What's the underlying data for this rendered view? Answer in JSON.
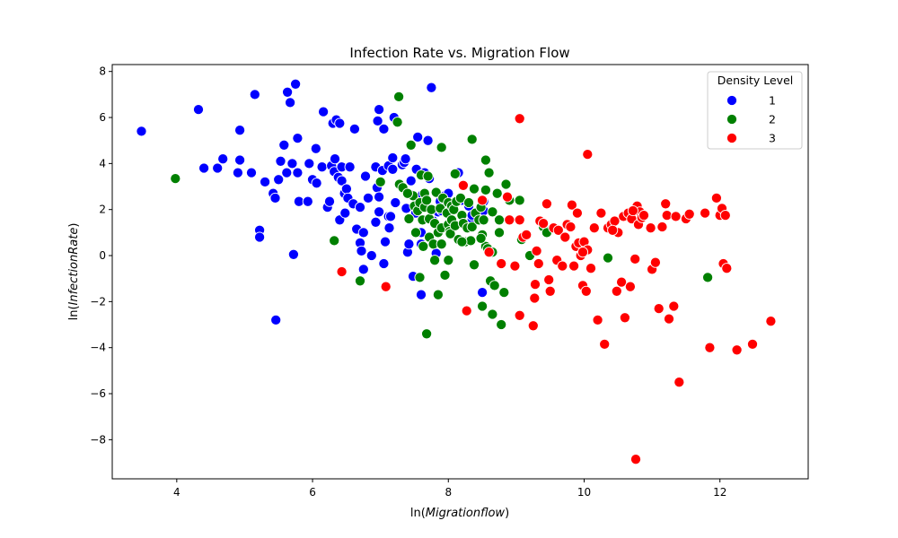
{
  "chart_data": {
    "type": "scatter",
    "title": "Infection Rate vs. Migration Flow",
    "xlabel": "ln(Migrationflow)",
    "ylabel": "ln(InfectionRate)",
    "xlim": [
      3.05,
      13.3
    ],
    "ylim": [
      -9.7,
      8.3
    ],
    "xticks": [
      4,
      6,
      8,
      10,
      12
    ],
    "yticks": [
      -8,
      -6,
      -4,
      -2,
      0,
      2,
      4,
      6,
      8
    ],
    "xtick_labels": [
      "4",
      "6",
      "8",
      "10",
      "12"
    ],
    "ytick_labels": [
      "−8",
      "−6",
      "−4",
      "−2",
      "0",
      "2",
      "4",
      "6",
      "8"
    ],
    "grid": false,
    "legend": {
      "title": "Density Level",
      "placement": "top-right"
    },
    "series": [
      {
        "name": "1",
        "color": "#0000ff",
        "points": [
          [
            3.48,
            5.4
          ],
          [
            4.32,
            6.35
          ],
          [
            4.4,
            3.8
          ],
          [
            4.6,
            3.8
          ],
          [
            4.68,
            4.2
          ],
          [
            4.9,
            3.6
          ],
          [
            4.93,
            5.45
          ],
          [
            4.93,
            4.15
          ],
          [
            5.1,
            3.6
          ],
          [
            5.15,
            7.0
          ],
          [
            5.22,
            1.1
          ],
          [
            5.22,
            0.8
          ],
          [
            5.3,
            3.2
          ],
          [
            5.42,
            2.7
          ],
          [
            5.45,
            2.5
          ],
          [
            5.5,
            3.3
          ],
          [
            5.53,
            4.1
          ],
          [
            5.58,
            4.8
          ],
          [
            5.62,
            3.6
          ],
          [
            5.63,
            7.1
          ],
          [
            5.67,
            6.65
          ],
          [
            5.7,
            4.0
          ],
          [
            5.72,
            0.05
          ],
          [
            5.75,
            7.45
          ],
          [
            5.78,
            5.1
          ],
          [
            5.78,
            3.6
          ],
          [
            5.8,
            2.35
          ],
          [
            5.46,
            -2.8
          ],
          [
            5.93,
            2.35
          ],
          [
            5.95,
            4.0
          ],
          [
            6.0,
            3.3
          ],
          [
            6.05,
            4.65
          ],
          [
            6.06,
            3.15
          ],
          [
            6.14,
            3.85
          ],
          [
            6.16,
            6.25
          ],
          [
            6.22,
            2.1
          ],
          [
            6.25,
            2.35
          ],
          [
            6.28,
            3.9
          ],
          [
            6.3,
            5.75
          ],
          [
            6.32,
            3.65
          ],
          [
            6.33,
            4.2
          ],
          [
            6.35,
            5.9
          ],
          [
            6.38,
            3.4
          ],
          [
            6.4,
            1.55
          ],
          [
            6.4,
            5.75
          ],
          [
            6.43,
            3.25
          ],
          [
            6.43,
            3.85
          ],
          [
            6.47,
            2.7
          ],
          [
            6.48,
            1.85
          ],
          [
            6.5,
            2.9
          ],
          [
            6.52,
            2.5
          ],
          [
            6.55,
            3.85
          ],
          [
            6.6,
            2.25
          ],
          [
            6.62,
            5.5
          ],
          [
            6.65,
            1.15
          ],
          [
            6.7,
            2.1
          ],
          [
            6.7,
            0.55
          ],
          [
            6.72,
            0.2
          ],
          [
            6.75,
            1.0
          ],
          [
            6.75,
            -0.6
          ],
          [
            6.78,
            3.45
          ],
          [
            6.82,
            2.5
          ],
          [
            6.87,
            0.0
          ],
          [
            6.93,
            1.45
          ],
          [
            6.93,
            3.85
          ],
          [
            6.95,
            2.95
          ],
          [
            6.96,
            5.85
          ],
          [
            6.98,
            6.35
          ],
          [
            6.98,
            1.9
          ],
          [
            6.98,
            2.55
          ],
          [
            7.03,
            3.7
          ],
          [
            7.05,
            5.5
          ],
          [
            7.05,
            -0.35
          ],
          [
            7.07,
            0.6
          ],
          [
            7.12,
            1.7
          ],
          [
            7.12,
            3.9
          ],
          [
            7.13,
            1.2
          ],
          [
            7.15,
            1.7
          ],
          [
            7.18,
            3.75
          ],
          [
            7.18,
            4.25
          ],
          [
            7.2,
            6.0
          ],
          [
            7.22,
            2.3
          ],
          [
            7.32,
            3.95
          ],
          [
            7.35,
            4.05
          ],
          [
            7.37,
            4.2
          ],
          [
            7.38,
            2.05
          ],
          [
            7.4,
            0.15
          ],
          [
            7.42,
            0.5
          ],
          [
            7.45,
            2.65
          ],
          [
            7.45,
            3.25
          ],
          [
            7.48,
            -0.9
          ],
          [
            7.52,
            1.85
          ],
          [
            7.53,
            3.75
          ],
          [
            7.55,
            5.15
          ],
          [
            7.6,
            -1.7
          ],
          [
            7.6,
            0.5
          ],
          [
            7.6,
            1.0
          ],
          [
            7.62,
            2.65
          ],
          [
            7.65,
            3.6
          ],
          [
            7.7,
            5.0
          ],
          [
            7.72,
            3.35
          ],
          [
            7.75,
            7.3
          ],
          [
            7.78,
            1.5
          ],
          [
            7.82,
            0.1
          ],
          [
            7.85,
            1.9
          ],
          [
            7.88,
            2.35
          ],
          [
            7.9,
            1.95
          ],
          [
            7.95,
            2.6
          ],
          [
            8.0,
            2.7
          ],
          [
            8.15,
            3.6
          ],
          [
            8.2,
            2.4
          ],
          [
            8.3,
            2.15
          ],
          [
            8.35,
            1.6
          ],
          [
            8.35,
            1.75
          ],
          [
            8.5,
            -1.6
          ],
          [
            8.52,
            2.35
          ],
          [
            8.52,
            1.95
          ]
        ]
      },
      {
        "name": "2",
        "color": "#008000",
        "points": [
          [
            3.98,
            3.35
          ],
          [
            6.32,
            0.65
          ],
          [
            6.7,
            -1.1
          ],
          [
            7.0,
            3.2
          ],
          [
            7.25,
            5.8
          ],
          [
            7.27,
            6.9
          ],
          [
            7.28,
            3.1
          ],
          [
            7.33,
            2.95
          ],
          [
            7.42,
            1.6
          ],
          [
            7.45,
            4.8
          ],
          [
            7.48,
            2.6
          ],
          [
            7.5,
            2.15
          ],
          [
            7.52,
            1.0
          ],
          [
            7.55,
            1.95
          ],
          [
            7.58,
            2.3
          ],
          [
            7.6,
            3.5
          ],
          [
            7.62,
            1.55
          ],
          [
            7.63,
            0.4
          ],
          [
            7.65,
            2.1
          ],
          [
            7.65,
            2.7
          ],
          [
            7.68,
            2.4
          ],
          [
            7.7,
            3.45
          ],
          [
            7.72,
            1.6
          ],
          [
            7.72,
            0.8
          ],
          [
            7.75,
            2.0
          ],
          [
            7.78,
            0.5
          ],
          [
            7.8,
            -0.2
          ],
          [
            7.8,
            1.4
          ],
          [
            7.82,
            2.75
          ],
          [
            7.85,
            1.0
          ],
          [
            7.85,
            -1.7
          ],
          [
            7.88,
            2.05
          ],
          [
            7.9,
            0.5
          ],
          [
            7.9,
            4.7
          ],
          [
            7.9,
            1.2
          ],
          [
            7.92,
            2.5
          ],
          [
            7.95,
            -0.85
          ],
          [
            7.98,
            1.85
          ],
          [
            8.0,
            1.35
          ],
          [
            8.0,
            2.3
          ],
          [
            8.02,
            1.05
          ],
          [
            8.03,
            0.95
          ],
          [
            8.05,
            1.55
          ],
          [
            8.05,
            2.15
          ],
          [
            8.08,
            2.0
          ],
          [
            8.1,
            3.55
          ],
          [
            8.1,
            1.3
          ],
          [
            8.12,
            2.35
          ],
          [
            8.15,
            0.7
          ],
          [
            8.18,
            2.5
          ],
          [
            8.2,
            1.75
          ],
          [
            8.22,
            1.4
          ],
          [
            8.25,
            0.6
          ],
          [
            8.28,
            1.2
          ],
          [
            8.3,
            2.3
          ],
          [
            8.33,
            0.65
          ],
          [
            8.35,
            1.25
          ],
          [
            8.38,
            2.9
          ],
          [
            8.38,
            -0.4
          ],
          [
            8.4,
            1.85
          ],
          [
            8.45,
            1.55
          ],
          [
            8.48,
            2.1
          ],
          [
            8.5,
            -2.2
          ],
          [
            8.5,
            0.9
          ],
          [
            8.52,
            1.55
          ],
          [
            8.55,
            2.85
          ],
          [
            8.55,
            0.4
          ],
          [
            8.58,
            0.3
          ],
          [
            8.6,
            3.6
          ],
          [
            8.62,
            -1.1
          ],
          [
            8.65,
            1.9
          ],
          [
            8.65,
            -2.55
          ],
          [
            8.68,
            -1.3
          ],
          [
            8.72,
            2.7
          ],
          [
            8.75,
            1.55
          ],
          [
            8.78,
            -3.0
          ],
          [
            8.82,
            -1.6
          ],
          [
            8.85,
            3.1
          ],
          [
            8.9,
            2.4
          ],
          [
            9.05,
            2.4
          ],
          [
            9.08,
            0.7
          ],
          [
            9.2,
            0.0
          ],
          [
            9.4,
            1.25
          ],
          [
            9.45,
            1.0
          ],
          [
            10.35,
            -0.1
          ],
          [
            11.82,
            -0.95
          ],
          [
            7.68,
            -3.4
          ],
          [
            8.55,
            4.15
          ],
          [
            8.65,
            0.15
          ],
          [
            8.0,
            -0.2
          ],
          [
            8.35,
            5.05
          ],
          [
            7.58,
            -0.95
          ],
          [
            8.2,
            0.6
          ],
          [
            8.48,
            0.75
          ],
          [
            8.75,
            1.0
          ],
          [
            7.4,
            2.7
          ]
        ]
      },
      {
        "name": "3",
        "color": "#ff0000",
        "points": [
          [
            6.43,
            -0.7
          ],
          [
            7.08,
            -1.35
          ],
          [
            8.22,
            3.05
          ],
          [
            8.27,
            -2.4
          ],
          [
            8.5,
            2.4
          ],
          [
            8.6,
            0.15
          ],
          [
            8.78,
            -0.35
          ],
          [
            8.87,
            2.55
          ],
          [
            8.9,
            1.55
          ],
          [
            8.98,
            -0.45
          ],
          [
            9.05,
            5.95
          ],
          [
            9.05,
            1.55
          ],
          [
            9.05,
            -2.6
          ],
          [
            9.1,
            0.8
          ],
          [
            9.25,
            -3.05
          ],
          [
            9.27,
            -1.85
          ],
          [
            9.28,
            -1.25
          ],
          [
            9.3,
            0.2
          ],
          [
            9.33,
            -0.35
          ],
          [
            9.35,
            1.5
          ],
          [
            9.4,
            1.4
          ],
          [
            9.45,
            2.25
          ],
          [
            9.48,
            -1.05
          ],
          [
            9.5,
            -1.55
          ],
          [
            9.55,
            1.2
          ],
          [
            9.6,
            -0.2
          ],
          [
            9.62,
            1.1
          ],
          [
            9.68,
            -0.45
          ],
          [
            9.72,
            0.8
          ],
          [
            9.75,
            1.35
          ],
          [
            9.8,
            1.25
          ],
          [
            9.82,
            2.2
          ],
          [
            9.85,
            -0.45
          ],
          [
            9.88,
            0.4
          ],
          [
            9.9,
            1.85
          ],
          [
            9.92,
            0.55
          ],
          [
            9.95,
            0.0
          ],
          [
            9.98,
            -1.3
          ],
          [
            10.0,
            0.6
          ],
          [
            10.03,
            -1.55
          ],
          [
            10.05,
            0.25
          ],
          [
            10.05,
            4.4
          ],
          [
            10.1,
            -0.55
          ],
          [
            10.15,
            1.2
          ],
          [
            10.2,
            -2.8
          ],
          [
            10.25,
            1.85
          ],
          [
            10.3,
            -3.85
          ],
          [
            10.35,
            1.2
          ],
          [
            10.4,
            1.35
          ],
          [
            10.45,
            1.5
          ],
          [
            10.48,
            -1.55
          ],
          [
            10.5,
            1.0
          ],
          [
            10.55,
            -1.15
          ],
          [
            10.58,
            1.7
          ],
          [
            10.6,
            -2.7
          ],
          [
            10.65,
            1.85
          ],
          [
            10.68,
            -1.35
          ],
          [
            10.7,
            1.6
          ],
          [
            10.75,
            -0.15
          ],
          [
            10.78,
            2.15
          ],
          [
            10.8,
            1.35
          ],
          [
            10.82,
            1.9
          ],
          [
            10.85,
            1.65
          ],
          [
            10.76,
            -8.85
          ],
          [
            10.98,
            1.2
          ],
          [
            11.0,
            -0.6
          ],
          [
            11.05,
            -0.3
          ],
          [
            11.1,
            -2.3
          ],
          [
            11.15,
            1.25
          ],
          [
            11.2,
            2.25
          ],
          [
            11.22,
            1.75
          ],
          [
            11.25,
            -2.75
          ],
          [
            11.32,
            -2.2
          ],
          [
            11.35,
            1.7
          ],
          [
            11.4,
            -5.5
          ],
          [
            11.5,
            1.6
          ],
          [
            11.55,
            1.8
          ],
          [
            11.78,
            1.85
          ],
          [
            11.85,
            -4.0
          ],
          [
            11.95,
            2.5
          ],
          [
            12.0,
            1.75
          ],
          [
            12.03,
            2.05
          ],
          [
            12.05,
            -0.35
          ],
          [
            12.08,
            1.75
          ],
          [
            12.1,
            -0.55
          ],
          [
            12.25,
            -4.1
          ],
          [
            12.48,
            -3.85
          ],
          [
            12.75,
            -2.85
          ],
          [
            9.15,
            0.9
          ],
          [
            10.72,
            1.95
          ],
          [
            10.88,
            1.75
          ],
          [
            9.98,
            0.15
          ],
          [
            10.42,
            1.1
          ]
        ]
      }
    ]
  }
}
